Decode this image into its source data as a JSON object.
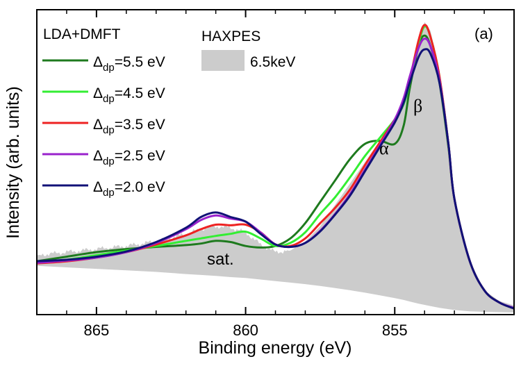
{
  "chart_data": {
    "type": "line",
    "title": "",
    "panel_label": "(a)",
    "xlabel": "Binding energy (eV)",
    "ylabel": "Intensity (arb. units)",
    "xlim": [
      867,
      851
    ],
    "x_reversed": true,
    "ylim": [
      0,
      100
    ],
    "yticks_shown": false,
    "xticks_major": [
      865,
      860,
      855
    ],
    "xticks_major_labels": [
      "865",
      "860",
      "855"
    ],
    "xticks_minor": [
      866,
      864,
      863,
      862,
      861,
      859,
      858,
      857,
      856,
      854,
      853,
      852
    ],
    "grid": false,
    "legend_left": {
      "title": "LDA+DMFT",
      "placement": "top-left"
    },
    "legend_right": {
      "title": "HAXPES",
      "entry": "6.5keV",
      "placement": "top-center"
    },
    "annotations": [
      {
        "text": "α",
        "x": 854.9,
        "y": 54
      },
      {
        "text": "β",
        "x": 854.3,
        "y": 69
      },
      {
        "text": "sat.",
        "x": 860.5,
        "y": 14
      }
    ],
    "experiment": {
      "name": "HAXPES 6.5keV",
      "color": "#cccccc",
      "x": [
        867,
        866,
        865,
        864,
        863,
        862,
        861.5,
        861,
        860.5,
        860,
        859.5,
        859,
        858.5,
        858,
        857.5,
        857,
        856.5,
        856,
        855.5,
        855,
        854.7,
        854.5,
        854.2,
        854,
        853.8,
        853.5,
        853.2,
        853,
        852.5,
        852,
        851.5,
        851
      ],
      "top": [
        19.5,
        20.5,
        21.5,
        22.5,
        24,
        26.5,
        28,
        29,
        28.5,
        27,
        23,
        20.5,
        21,
        24,
        29,
        36,
        43,
        50,
        57,
        64,
        71,
        78,
        88,
        96,
        93,
        80,
        55,
        38,
        18,
        8,
        4.5,
        3
      ],
      "bottom": [
        16,
        15.5,
        15,
        14.5,
        14,
        13.3,
        13,
        12.7,
        12.3,
        12,
        11.5,
        11,
        10.5,
        10,
        9.4,
        8.7,
        8,
        7.2,
        6.3,
        5.4,
        4.8,
        4.3,
        3.6,
        3.2,
        2.8,
        2.2,
        1.8,
        1.5,
        1.1,
        0.9,
        0.8,
        0.7
      ]
    },
    "series": [
      {
        "name": "Δdp=5.5 eV",
        "delta_label": "5.5 eV",
        "color": "#1e7a1e",
        "x": [
          867,
          866,
          865,
          864,
          863,
          862,
          861.5,
          861,
          860.5,
          860,
          859.5,
          859,
          858.5,
          858,
          857.5,
          857,
          856.5,
          856,
          855.5,
          855,
          854.7,
          854.5,
          854.2,
          854,
          853.8,
          853.5,
          853.2,
          853,
          852.5,
          852,
          851.5,
          851
        ],
        "y": [
          17.5,
          19,
          20.5,
          21.5,
          22.2,
          22.8,
          23.3,
          24.2,
          23.8,
          22.5,
          22,
          22.5,
          25,
          30,
          37,
          44,
          51,
          56,
          57,
          56,
          62,
          74,
          88,
          91.5,
          88,
          76,
          55,
          38,
          18,
          8,
          4,
          2
        ]
      },
      {
        "name": "Δdp=4.5 eV",
        "delta_label": "4.5 eV",
        "color": "#33ee33",
        "x": [
          867,
          866,
          865,
          864,
          863,
          862,
          861.5,
          861,
          860.5,
          860,
          859.5,
          859,
          858.5,
          858,
          857.5,
          857,
          856.5,
          856,
          855.5,
          855,
          854.7,
          854.5,
          854.2,
          854,
          853.8,
          853.5,
          853.2,
          853,
          852.5,
          852,
          851.5,
          851
        ],
        "y": [
          17,
          18,
          19.5,
          21,
          22.5,
          24.2,
          25,
          25.8,
          26.5,
          27.2,
          25,
          22.5,
          23.5,
          27,
          33,
          38.5,
          45,
          52,
          58,
          64,
          69,
          76,
          89,
          94.5,
          91,
          78,
          56,
          38,
          18,
          8,
          4,
          2
        ]
      },
      {
        "name": "Δdp=3.5 eV",
        "delta_label": "3.5 eV",
        "color": "#ee2222",
        "x": [
          867,
          866,
          865,
          864,
          863,
          862,
          861.5,
          861,
          860.5,
          860,
          859.5,
          859,
          858.5,
          858,
          857.5,
          857,
          856.5,
          856,
          855.5,
          855,
          854.7,
          854.5,
          854.2,
          854,
          853.8,
          853.5,
          853.2,
          853,
          852.5,
          852,
          851.5,
          851
        ],
        "y": [
          16.8,
          17.5,
          18.7,
          20.5,
          23,
          26,
          28,
          29.5,
          29.3,
          29.5,
          27,
          23,
          22.5,
          25,
          30,
          35,
          41,
          49,
          56.5,
          64,
          70,
          77,
          90,
          95,
          91,
          78,
          56,
          38,
          18,
          8,
          4,
          2
        ]
      },
      {
        "name": "Δdp=2.5 eV",
        "delta_label": "2.5 eV",
        "color": "#9922cc",
        "x": [
          867,
          866,
          865,
          864,
          863,
          862,
          861.5,
          861,
          860.5,
          860,
          859.5,
          859,
          858.5,
          858,
          857.5,
          857,
          856.5,
          856,
          855.5,
          855,
          854.7,
          854.5,
          854.2,
          854,
          853.8,
          853.5,
          853.2,
          853,
          852.5,
          852,
          851.5,
          851
        ],
        "y": [
          17,
          17.7,
          18.7,
          20.5,
          23.5,
          28,
          31,
          32.5,
          31.5,
          30.5,
          27,
          23,
          22.2,
          23.5,
          27.5,
          33,
          39.5,
          47.5,
          55.5,
          64,
          71,
          78,
          87.5,
          90.5,
          88,
          77,
          56,
          38,
          18,
          8,
          4,
          2.2
        ]
      },
      {
        "name": "Δdp=2.0 eV",
        "delta_label": "2.0 eV",
        "color": "#111177",
        "x": [
          867,
          866,
          865,
          864,
          863,
          862,
          861.5,
          861,
          860.5,
          860,
          859.5,
          859,
          858.5,
          858,
          857.5,
          857,
          856.5,
          856,
          855.5,
          855,
          854.7,
          854.5,
          854.2,
          854,
          853.8,
          853.5,
          853.2,
          853,
          852.5,
          852,
          851.5,
          851
        ],
        "y": [
          17.5,
          18,
          19,
          20.7,
          23.8,
          28.5,
          32,
          33.5,
          32,
          30.5,
          26.5,
          23,
          22.2,
          23.5,
          27.3,
          32.8,
          39,
          47,
          55,
          63,
          69.5,
          76,
          84.5,
          87,
          85.5,
          76,
          56,
          38,
          18,
          8,
          4,
          2
        ]
      }
    ]
  }
}
